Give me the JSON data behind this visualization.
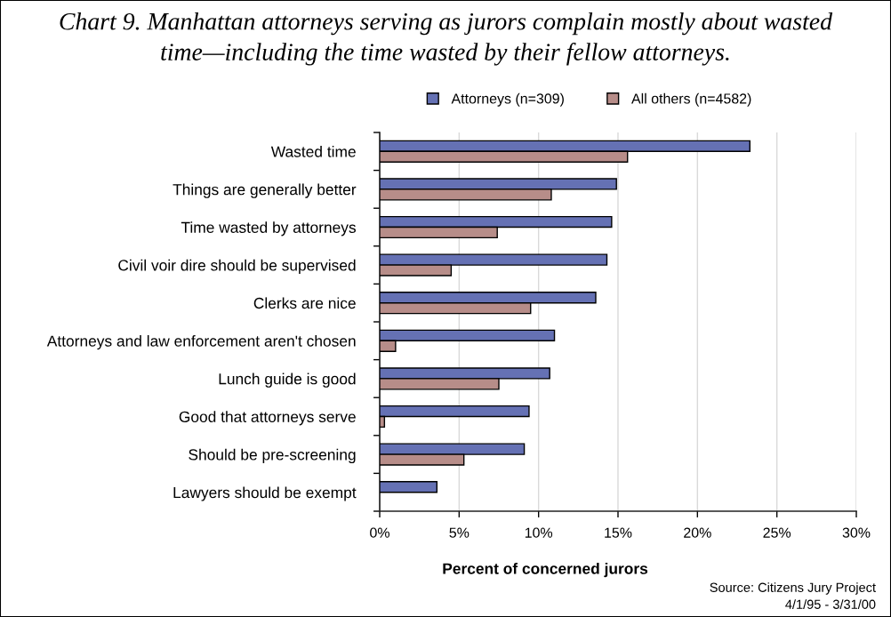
{
  "chart_data": {
    "type": "bar",
    "orientation": "horizontal",
    "title": "Chart 9. Manhattan attorneys serving as jurors complain mostly about wasted time—including the time wasted by their fellow attorneys.",
    "xlabel": "Percent of concerned jurors",
    "categories": [
      "Wasted time",
      "Things are generally better",
      "Time wasted by attorneys",
      "Civil voir dire should be supervised",
      "Clerks are nice",
      "Attorneys and law enforcement aren't chosen",
      "Lunch guide is good",
      "Good that attorneys serve",
      "Should be pre-screening",
      "Lawyers should be exempt"
    ],
    "series": [
      {
        "name": "Attorneys (n=309)",
        "color": "#6571b4",
        "values": [
          23.3,
          14.9,
          14.6,
          14.3,
          13.6,
          11.0,
          10.7,
          9.4,
          9.1,
          3.6
        ]
      },
      {
        "name": "All others (n=4582)",
        "color": "#b78d89",
        "values": [
          15.6,
          10.8,
          7.4,
          4.5,
          9.5,
          1.0,
          7.5,
          0.3,
          5.3,
          null
        ]
      }
    ],
    "xlim": [
      0,
      30
    ],
    "xticks": [
      {
        "value": 0,
        "label": "0%"
      },
      {
        "value": 5,
        "label": "5%"
      },
      {
        "value": 10,
        "label": "10%"
      },
      {
        "value": 15,
        "label": "15%"
      },
      {
        "value": 20,
        "label": "20%"
      },
      {
        "value": 25,
        "label": "25%"
      },
      {
        "value": 30,
        "label": "30%"
      }
    ],
    "grid": "x",
    "legend": "top",
    "annotations": [
      "Source: Citizens Jury Project",
      "4/1/95 - 3/31/00"
    ]
  }
}
